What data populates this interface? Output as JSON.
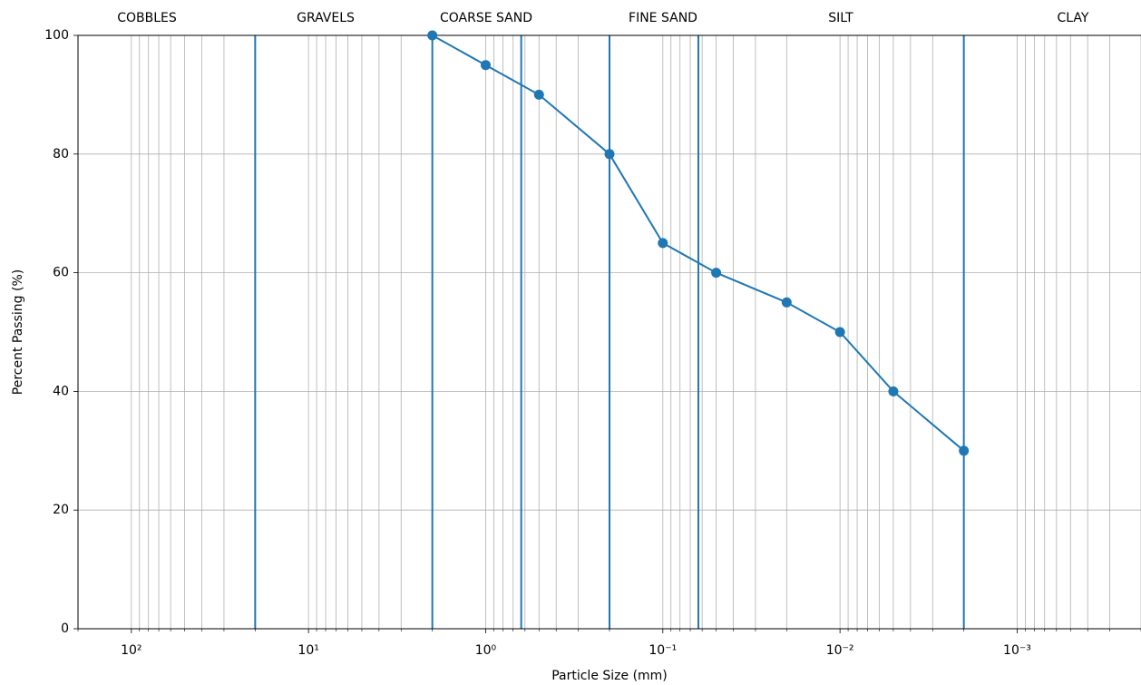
{
  "chart_data": {
    "type": "line",
    "xlabel": "Particle Size (mm)",
    "ylabel": "Percent Passing (%)",
    "x": [
      2,
      1,
      0.5,
      0.2,
      0.1,
      0.05,
      0.02,
      0.01,
      0.005,
      0.002
    ],
    "series": [
      {
        "color": "#1f77b4",
        "values": [
          100,
          95,
          90,
          80,
          65,
          60,
          55,
          50,
          40,
          30
        ]
      }
    ],
    "xscale": "log",
    "xlim": [
      200,
      0.0002
    ],
    "ylim": [
      0,
      100
    ],
    "xticks": [
      {
        "value": 100,
        "label": "10²"
      },
      {
        "value": 10,
        "label": "10¹"
      },
      {
        "value": 1,
        "label": "10⁰"
      },
      {
        "value": 0.1,
        "label": "10⁻¹"
      },
      {
        "value": 0.01,
        "label": "10⁻²"
      },
      {
        "value": 0.001,
        "label": "10⁻³"
      }
    ],
    "xminorticks": [
      200,
      90,
      80,
      70,
      60,
      50,
      40,
      30,
      20,
      9,
      8,
      7,
      6,
      5,
      4,
      3,
      2,
      0.9,
      0.8,
      0.7,
      0.6,
      0.5,
      0.4,
      0.3,
      0.2,
      0.09,
      0.08,
      0.07,
      0.06,
      0.05,
      0.04,
      0.03,
      0.02,
      0.009,
      0.008,
      0.007,
      0.006,
      0.005,
      0.004,
      0.003,
      0.002,
      0.0009,
      0.0008,
      0.0007,
      0.0006,
      0.0005,
      0.0004,
      0.0003,
      0.0002
    ],
    "yticks": [
      0,
      20,
      40,
      60,
      80,
      100
    ],
    "grid": true,
    "boundaries": [
      20,
      2,
      0.63,
      0.2,
      0.063,
      0.002
    ],
    "regions": [
      "COBBLES",
      "GRAVELS",
      "COARSE SAND",
      "FINE SAND",
      "SILT",
      "CLAY"
    ]
  }
}
